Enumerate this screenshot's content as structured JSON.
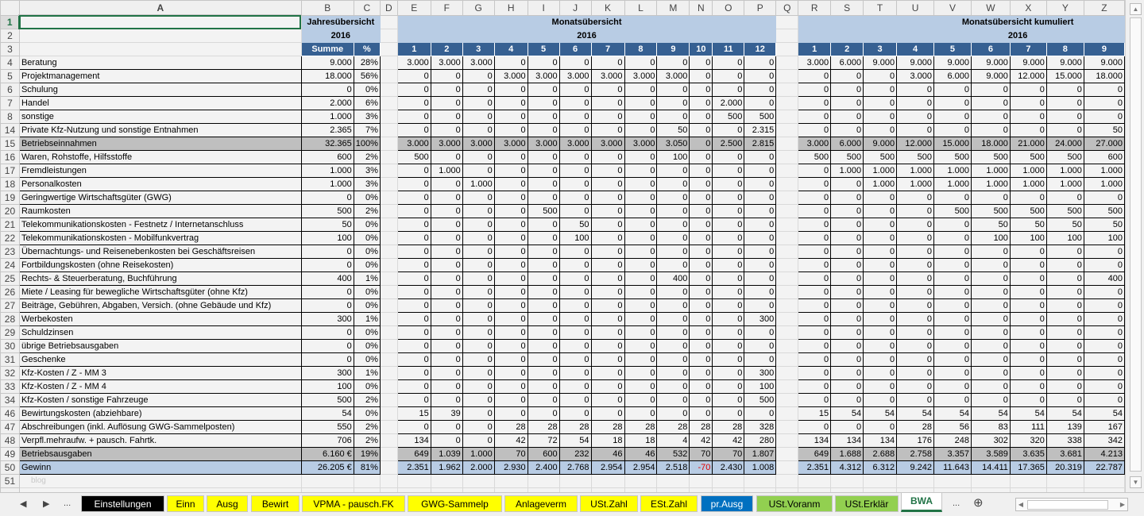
{
  "columns": [
    "A",
    "B",
    "C",
    "D",
    "E",
    "F",
    "G",
    "H",
    "I",
    "J",
    "K",
    "L",
    "M",
    "N",
    "O",
    "P",
    "Q",
    "R",
    "S",
    "T",
    "U",
    "V",
    "W",
    "X",
    "Y",
    "Z"
  ],
  "header": {
    "jahres_title": "Jahresübersicht",
    "jahres_year": "2016",
    "summe": "Summe",
    "pct": "%",
    "monat_title": "Monatsübersicht",
    "monat_year": "2016",
    "kum_title": "Monatsübersicht kumuliert",
    "kum_year": "2016",
    "months": [
      "1",
      "2",
      "3",
      "4",
      "5",
      "6",
      "7",
      "8",
      "9",
      "10",
      "11",
      "12"
    ],
    "cum_months": [
      "1",
      "2",
      "3",
      "4",
      "5",
      "6",
      "7",
      "8",
      "9"
    ]
  },
  "rows": [
    {
      "num": "4",
      "label": "Beratung",
      "sum": "9.000",
      "pct": "28%",
      "m": [
        "3.000",
        "3.000",
        "3.000",
        "0",
        "0",
        "0",
        "0",
        "0",
        "0",
        "0",
        "0",
        "0"
      ],
      "c": [
        "3.000",
        "6.000",
        "9.000",
        "9.000",
        "9.000",
        "9.000",
        "9.000",
        "9.000",
        "9.000"
      ],
      "style": "normal"
    },
    {
      "num": "5",
      "label": "Projektmanagement",
      "sum": "18.000",
      "pct": "56%",
      "m": [
        "0",
        "0",
        "0",
        "3.000",
        "3.000",
        "3.000",
        "3.000",
        "3.000",
        "3.000",
        "0",
        "0",
        "0"
      ],
      "c": [
        "0",
        "0",
        "0",
        "3.000",
        "6.000",
        "9.000",
        "12.000",
        "15.000",
        "18.000"
      ],
      "style": "normal"
    },
    {
      "num": "6",
      "label": "Schulung",
      "sum": "0",
      "pct": "0%",
      "m": [
        "0",
        "0",
        "0",
        "0",
        "0",
        "0",
        "0",
        "0",
        "0",
        "0",
        "0",
        "0"
      ],
      "c": [
        "0",
        "0",
        "0",
        "0",
        "0",
        "0",
        "0",
        "0",
        "0"
      ],
      "style": "normal"
    },
    {
      "num": "7",
      "label": "Handel",
      "sum": "2.000",
      "pct": "6%",
      "m": [
        "0",
        "0",
        "0",
        "0",
        "0",
        "0",
        "0",
        "0",
        "0",
        "0",
        "2.000",
        "0"
      ],
      "c": [
        "0",
        "0",
        "0",
        "0",
        "0",
        "0",
        "0",
        "0",
        "0"
      ],
      "style": "normal"
    },
    {
      "num": "8",
      "label": "sonstige",
      "sum": "1.000",
      "pct": "3%",
      "m": [
        "0",
        "0",
        "0",
        "0",
        "0",
        "0",
        "0",
        "0",
        "0",
        "0",
        "500",
        "500"
      ],
      "c": [
        "0",
        "0",
        "0",
        "0",
        "0",
        "0",
        "0",
        "0",
        "0"
      ],
      "style": "normal"
    },
    {
      "num": "14",
      "label": "Private Kfz-Nutzung und sonstige Entnahmen",
      "sum": "2.365",
      "pct": "7%",
      "m": [
        "0",
        "0",
        "0",
        "0",
        "0",
        "0",
        "0",
        "0",
        "50",
        "0",
        "0",
        "2.315"
      ],
      "c": [
        "0",
        "0",
        "0",
        "0",
        "0",
        "0",
        "0",
        "0",
        "50"
      ],
      "style": "normal"
    },
    {
      "num": "15",
      "label": "Betriebseinnahmen",
      "sum": "32.365",
      "pct": "100%",
      "m": [
        "3.000",
        "3.000",
        "3.000",
        "3.000",
        "3.000",
        "3.000",
        "3.000",
        "3.000",
        "3.050",
        "0",
        "2.500",
        "2.815"
      ],
      "c": [
        "3.000",
        "6.000",
        "9.000",
        "12.000",
        "15.000",
        "18.000",
        "21.000",
        "24.000",
        "27.000"
      ],
      "style": "total"
    },
    {
      "num": "16",
      "label": "Waren, Rohstoffe, Hilfsstoffe",
      "sum": "600",
      "pct": "2%",
      "m": [
        "500",
        "0",
        "0",
        "0",
        "0",
        "0",
        "0",
        "0",
        "100",
        "0",
        "0",
        "0"
      ],
      "c": [
        "500",
        "500",
        "500",
        "500",
        "500",
        "500",
        "500",
        "500",
        "600"
      ],
      "style": "normal"
    },
    {
      "num": "17",
      "label": "Fremdleistungen",
      "sum": "1.000",
      "pct": "3%",
      "m": [
        "0",
        "1.000",
        "0",
        "0",
        "0",
        "0",
        "0",
        "0",
        "0",
        "0",
        "0",
        "0"
      ],
      "c": [
        "0",
        "1.000",
        "1.000",
        "1.000",
        "1.000",
        "1.000",
        "1.000",
        "1.000",
        "1.000"
      ],
      "style": "normal"
    },
    {
      "num": "18",
      "label": "Personalkosten",
      "sum": "1.000",
      "pct": "3%",
      "m": [
        "0",
        "0",
        "1.000",
        "0",
        "0",
        "0",
        "0",
        "0",
        "0",
        "0",
        "0",
        "0"
      ],
      "c": [
        "0",
        "0",
        "1.000",
        "1.000",
        "1.000",
        "1.000",
        "1.000",
        "1.000",
        "1.000"
      ],
      "style": "normal"
    },
    {
      "num": "19",
      "label": "Geringwertige Wirtschaftsgüter (GWG)",
      "sum": "0",
      "pct": "0%",
      "m": [
        "0",
        "0",
        "0",
        "0",
        "0",
        "0",
        "0",
        "0",
        "0",
        "0",
        "0",
        "0"
      ],
      "c": [
        "0",
        "0",
        "0",
        "0",
        "0",
        "0",
        "0",
        "0",
        "0"
      ],
      "style": "normal"
    },
    {
      "num": "20",
      "label": "Raumkosten",
      "sum": "500",
      "pct": "2%",
      "m": [
        "0",
        "0",
        "0",
        "0",
        "500",
        "0",
        "0",
        "0",
        "0",
        "0",
        "0",
        "0"
      ],
      "c": [
        "0",
        "0",
        "0",
        "0",
        "500",
        "500",
        "500",
        "500",
        "500"
      ],
      "style": "normal"
    },
    {
      "num": "21",
      "label": "Telekommunikationskosten - Festnetz / Internetanschluss",
      "sum": "50",
      "pct": "0%",
      "m": [
        "0",
        "0",
        "0",
        "0",
        "0",
        "50",
        "0",
        "0",
        "0",
        "0",
        "0",
        "0"
      ],
      "c": [
        "0",
        "0",
        "0",
        "0",
        "0",
        "50",
        "50",
        "50",
        "50"
      ],
      "style": "normal"
    },
    {
      "num": "22",
      "label": "Telekommunikationskosten - Mobilfunkvertrag",
      "sum": "100",
      "pct": "0%",
      "m": [
        "0",
        "0",
        "0",
        "0",
        "0",
        "100",
        "0",
        "0",
        "0",
        "0",
        "0",
        "0"
      ],
      "c": [
        "0",
        "0",
        "0",
        "0",
        "0",
        "100",
        "100",
        "100",
        "100"
      ],
      "style": "normal"
    },
    {
      "num": "23",
      "label": "Übernachtungs- und Reisenebenkosten bei Geschäftsreisen",
      "sum": "0",
      "pct": "0%",
      "m": [
        "0",
        "0",
        "0",
        "0",
        "0",
        "0",
        "0",
        "0",
        "0",
        "0",
        "0",
        "0"
      ],
      "c": [
        "0",
        "0",
        "0",
        "0",
        "0",
        "0",
        "0",
        "0",
        "0"
      ],
      "style": "normal"
    },
    {
      "num": "24",
      "label": "Fortbildungskosten (ohne Reisekosten)",
      "sum": "0",
      "pct": "0%",
      "m": [
        "0",
        "0",
        "0",
        "0",
        "0",
        "0",
        "0",
        "0",
        "0",
        "0",
        "0",
        "0"
      ],
      "c": [
        "0",
        "0",
        "0",
        "0",
        "0",
        "0",
        "0",
        "0",
        "0"
      ],
      "style": "normal"
    },
    {
      "num": "25",
      "label": "Rechts- & Steuerberatung, Buchführung",
      "sum": "400",
      "pct": "1%",
      "m": [
        "0",
        "0",
        "0",
        "0",
        "0",
        "0",
        "0",
        "0",
        "400",
        "0",
        "0",
        "0"
      ],
      "c": [
        "0",
        "0",
        "0",
        "0",
        "0",
        "0",
        "0",
        "0",
        "400"
      ],
      "style": "normal"
    },
    {
      "num": "26",
      "label": "Miete / Leasing für bewegliche Wirtschaftsgüter (ohne Kfz)",
      "sum": "0",
      "pct": "0%",
      "m": [
        "0",
        "0",
        "0",
        "0",
        "0",
        "0",
        "0",
        "0",
        "0",
        "0",
        "0",
        "0"
      ],
      "c": [
        "0",
        "0",
        "0",
        "0",
        "0",
        "0",
        "0",
        "0",
        "0"
      ],
      "style": "normal"
    },
    {
      "num": "27",
      "label": "Beiträge, Gebühren, Abgaben, Versich. (ohne Gebäude und Kfz)",
      "sum": "0",
      "pct": "0%",
      "m": [
        "0",
        "0",
        "0",
        "0",
        "0",
        "0",
        "0",
        "0",
        "0",
        "0",
        "0",
        "0"
      ],
      "c": [
        "0",
        "0",
        "0",
        "0",
        "0",
        "0",
        "0",
        "0",
        "0"
      ],
      "style": "normal"
    },
    {
      "num": "28",
      "label": "Werbekosten",
      "sum": "300",
      "pct": "1%",
      "m": [
        "0",
        "0",
        "0",
        "0",
        "0",
        "0",
        "0",
        "0",
        "0",
        "0",
        "0",
        "300"
      ],
      "c": [
        "0",
        "0",
        "0",
        "0",
        "0",
        "0",
        "0",
        "0",
        "0"
      ],
      "style": "normal"
    },
    {
      "num": "29",
      "label": "Schuldzinsen",
      "sum": "0",
      "pct": "0%",
      "m": [
        "0",
        "0",
        "0",
        "0",
        "0",
        "0",
        "0",
        "0",
        "0",
        "0",
        "0",
        "0"
      ],
      "c": [
        "0",
        "0",
        "0",
        "0",
        "0",
        "0",
        "0",
        "0",
        "0"
      ],
      "style": "normal"
    },
    {
      "num": "30",
      "label": "übrige Betriebsausgaben",
      "sum": "0",
      "pct": "0%",
      "m": [
        "0",
        "0",
        "0",
        "0",
        "0",
        "0",
        "0",
        "0",
        "0",
        "0",
        "0",
        "0"
      ],
      "c": [
        "0",
        "0",
        "0",
        "0",
        "0",
        "0",
        "0",
        "0",
        "0"
      ],
      "style": "normal"
    },
    {
      "num": "31",
      "label": "Geschenke",
      "sum": "0",
      "pct": "0%",
      "m": [
        "0",
        "0",
        "0",
        "0",
        "0",
        "0",
        "0",
        "0",
        "0",
        "0",
        "0",
        "0"
      ],
      "c": [
        "0",
        "0",
        "0",
        "0",
        "0",
        "0",
        "0",
        "0",
        "0"
      ],
      "style": "normal"
    },
    {
      "num": "32",
      "label": "Kfz-Kosten / Z - MM 3",
      "sum": "300",
      "pct": "1%",
      "m": [
        "0",
        "0",
        "0",
        "0",
        "0",
        "0",
        "0",
        "0",
        "0",
        "0",
        "0",
        "300"
      ],
      "c": [
        "0",
        "0",
        "0",
        "0",
        "0",
        "0",
        "0",
        "0",
        "0"
      ],
      "style": "normal"
    },
    {
      "num": "33",
      "label": "Kfz-Kosten / Z - MM 4",
      "sum": "100",
      "pct": "0%",
      "m": [
        "0",
        "0",
        "0",
        "0",
        "0",
        "0",
        "0",
        "0",
        "0",
        "0",
        "0",
        "100"
      ],
      "c": [
        "0",
        "0",
        "0",
        "0",
        "0",
        "0",
        "0",
        "0",
        "0"
      ],
      "style": "normal"
    },
    {
      "num": "34",
      "label": "Kfz-Kosten / sonstige Fahrzeuge",
      "sum": "500",
      "pct": "2%",
      "m": [
        "0",
        "0",
        "0",
        "0",
        "0",
        "0",
        "0",
        "0",
        "0",
        "0",
        "0",
        "500"
      ],
      "c": [
        "0",
        "0",
        "0",
        "0",
        "0",
        "0",
        "0",
        "0",
        "0"
      ],
      "style": "normal"
    },
    {
      "num": "46",
      "label": "Bewirtungskosten (abziehbare)",
      "sum": "54",
      "pct": "0%",
      "m": [
        "15",
        "39",
        "0",
        "0",
        "0",
        "0",
        "0",
        "0",
        "0",
        "0",
        "0",
        "0"
      ],
      "c": [
        "15",
        "54",
        "54",
        "54",
        "54",
        "54",
        "54",
        "54",
        "54"
      ],
      "style": "normal"
    },
    {
      "num": "47",
      "label": "Abschreibungen (inkl. Auflösung GWG-Sammelposten)",
      "sum": "550",
      "pct": "2%",
      "m": [
        "0",
        "0",
        "0",
        "28",
        "28",
        "28",
        "28",
        "28",
        "28",
        "28",
        "28",
        "328"
      ],
      "c": [
        "0",
        "0",
        "0",
        "28",
        "56",
        "83",
        "111",
        "139",
        "167"
      ],
      "style": "normal"
    },
    {
      "num": "48",
      "label": "Verpfl.mehraufw. + pausch. Fahrtk.",
      "sum": "706",
      "pct": "2%",
      "m": [
        "134",
        "0",
        "0",
        "42",
        "72",
        "54",
        "18",
        "18",
        "4",
        "42",
        "42",
        "280"
      ],
      "c": [
        "134",
        "134",
        "134",
        "176",
        "248",
        "302",
        "320",
        "338",
        "342"
      ],
      "style": "normal"
    },
    {
      "num": "49",
      "label": "Betriebsausgaben",
      "sum": "6.160 €",
      "pct": "19%",
      "m": [
        "649",
        "1.039",
        "1.000",
        "70",
        "600",
        "232",
        "46",
        "46",
        "532",
        "70",
        "70",
        "1.807"
      ],
      "c": [
        "649",
        "1.688",
        "2.688",
        "2.758",
        "3.357",
        "3.589",
        "3.635",
        "3.681",
        "4.213"
      ],
      "style": "total"
    },
    {
      "num": "50",
      "label": "Gewinn",
      "sum": "26.205 €",
      "pct": "81%",
      "m": [
        "2.351",
        "1.962",
        "2.000",
        "2.930",
        "2.400",
        "2.768",
        "2.954",
        "2.954",
        "2.518",
        "-70",
        "2.430",
        "1.008"
      ],
      "c": [
        "2.351",
        "4.312",
        "6.312",
        "9.242",
        "11.643",
        "14.411",
        "17.365",
        "20.319",
        "22.787"
      ],
      "style": "gewinn"
    }
  ],
  "extra_rows": [
    {
      "num": "51",
      "watermark": "blog"
    }
  ],
  "colors": {
    "accent": "#217346",
    "header_light": "#b8cce4",
    "header_dark": "#366092",
    "total_row": "#bfbfbf",
    "negative": "#e00000"
  },
  "tabs": [
    {
      "label": "Einstellungen",
      "bg": "#000000",
      "fg": "#ffffff"
    },
    {
      "label": "Einn",
      "bg": "#ffff00",
      "fg": "#000000"
    },
    {
      "label": "Ausg",
      "bg": "#ffff00",
      "fg": "#000000"
    },
    {
      "label": "Bewirt",
      "bg": "#ffff00",
      "fg": "#000000"
    },
    {
      "label": "VPMA - pausch.FK",
      "bg": "#ffff00",
      "fg": "#000000"
    },
    {
      "label": "GWG-Sammelp",
      "bg": "#ffff00",
      "fg": "#000000"
    },
    {
      "label": "Anlageverm",
      "bg": "#ffff00",
      "fg": "#000000"
    },
    {
      "label": "USt.Zahl",
      "bg": "#ffff00",
      "fg": "#000000"
    },
    {
      "label": "ESt.Zahl",
      "bg": "#ffff00",
      "fg": "#000000"
    },
    {
      "label": "pr.Ausg",
      "bg": "#0070c0",
      "fg": "#ffffff"
    },
    {
      "label": "USt.Voranm",
      "bg": "#92d050",
      "fg": "#000000"
    },
    {
      "label": "USt.Erklär",
      "bg": "#92d050",
      "fg": "#000000"
    },
    {
      "label": "BWA",
      "bg": "#ffffff",
      "fg": "#217346",
      "active": true
    }
  ],
  "tabbar": {
    "prev": "◀",
    "next": "▶",
    "more_left": "...",
    "more_right": "...",
    "add": "⊕"
  }
}
